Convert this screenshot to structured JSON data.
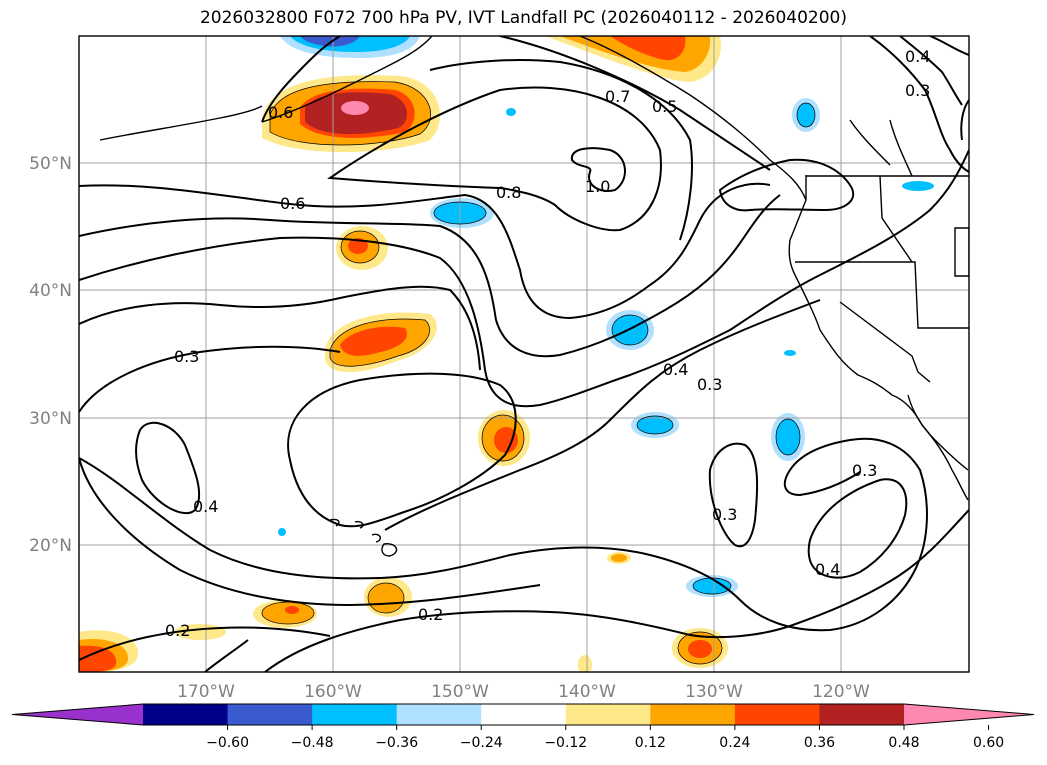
{
  "title": "2026032800 F072 700 hPa PV, IVT Landfall PC (2026040112 - 2026040200)",
  "map": {
    "lat_labels": [
      "50°N",
      "40°N",
      "30°N",
      "20°N"
    ],
    "lon_labels": [
      "170°W",
      "160°W",
      "150°W",
      "140°W",
      "130°W",
      "120°W"
    ],
    "colors": {
      "coast": "#000000",
      "grid": "#a0a0a0",
      "contour": "#000000"
    }
  },
  "contour_labels": [
    "0.6",
    "0.6",
    "0.8",
    "1.0",
    "0.7",
    "0.5",
    "0.4",
    "0.3",
    "0.4",
    "0.3",
    "0.3",
    "0.4",
    "0.3",
    "0.3",
    "0.4",
    "0.2",
    "0.2"
  ],
  "colorbar": {
    "ticks": [
      "−0.60",
      "−0.48",
      "−0.36",
      "−0.24",
      "−0.12",
      "0.12",
      "0.24",
      "0.36",
      "0.48",
      "0.60"
    ],
    "colors": [
      "#9932cc",
      "#00008b",
      "#3a5bd0",
      "#00bfff",
      "#b0e0ff",
      "#ffffff",
      "#ffe88a",
      "#ffa500",
      "#ff4500",
      "#b22222",
      "#ff88b0"
    ]
  }
}
